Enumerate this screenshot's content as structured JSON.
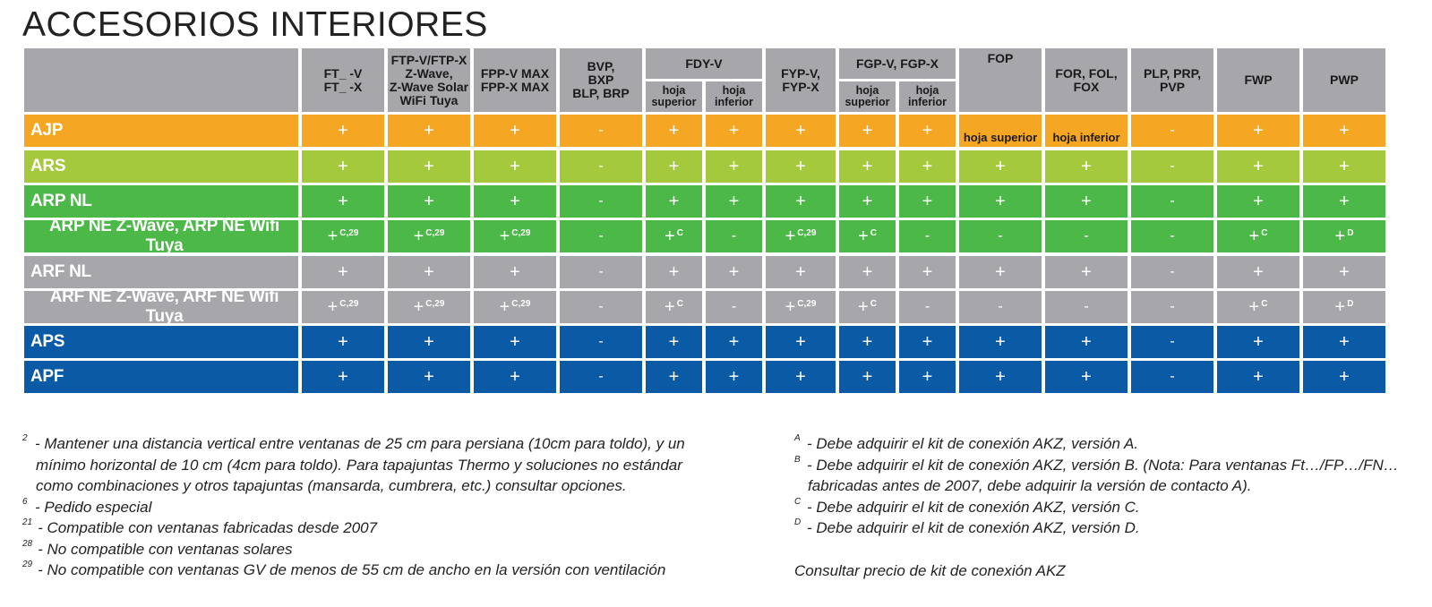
{
  "title": "ACCESORIOS INTERIORES",
  "colors": {
    "orange": "#f5a623",
    "lime": "#a5c93c",
    "green": "#4cb848",
    "gray": "#a6a6ab",
    "blue": "#0a5aa5"
  },
  "header": {
    "columns": [
      {
        "label": "FT_ -V\nFT_ -X"
      },
      {
        "label": "FTP-V/FTP-X\nZ-Wave,\nZ-Wave Solar\nWiFi Tuya"
      },
      {
        "label": "FPP-V MAX\nFPP-X MAX"
      },
      {
        "label": "BVP,\nBXP\nBLP, BRP"
      },
      {
        "label": "FDY-V",
        "sub": [
          "hoja\nsuperior",
          "hoja\ninferior"
        ]
      },
      {
        "label": "FYP-V,\nFYP-X"
      },
      {
        "label": "FGP-V, FGP-X",
        "sub": [
          "hoja\nsuperior",
          "hoja\ninferior"
        ]
      },
      {
        "label": "FOP"
      },
      {
        "label": "FOR, FOL,\nFOX"
      },
      {
        "label": "PLP, PRP,\nPVP"
      },
      {
        "label": "FWP"
      },
      {
        "label": "PWP"
      }
    ]
  },
  "rows": [
    {
      "label": "AJP",
      "color": "orange",
      "cells": [
        "+",
        "+",
        "+",
        "-",
        "+",
        "+",
        "+",
        "+",
        "+",
        "hoja superior",
        "hoja inferior",
        "-",
        "+",
        "+"
      ]
    },
    {
      "label": "ARS",
      "color": "lime",
      "cells": [
        "+",
        "+",
        "+",
        "-",
        "+",
        "+",
        "+",
        "+",
        "+",
        "+",
        "+",
        "-",
        "+",
        "+"
      ]
    },
    {
      "label": "ARP NL",
      "color": "green",
      "cells": [
        "+",
        "+",
        "+",
        "-",
        "+",
        "+",
        "+",
        "+",
        "+",
        "+",
        "+",
        "-",
        "+",
        "+"
      ]
    },
    {
      "label": "ARP NE Z-Wave, ARP NE Wifi Tuya",
      "color": "green",
      "cells": [
        "+|C,29",
        "+|C,29",
        "+|C,29",
        "-",
        "+|C",
        "-",
        "+|C,29",
        "+|C",
        "-",
        "-",
        "-",
        "-",
        "+|C",
        "+|D"
      ]
    },
    {
      "label": "ARF NL",
      "color": "gray",
      "cells": [
        "+",
        "+",
        "+",
        "-",
        "+",
        "+",
        "+",
        "+",
        "+",
        "+",
        "+",
        "-",
        "+",
        "+"
      ]
    },
    {
      "label": "ARF NE Z-Wave, ARF NE Wifi Tuya",
      "color": "gray",
      "cells": [
        "+|C,29",
        "+|C,29",
        "+|C,29",
        "-",
        "+|C",
        "-",
        "+|C,29",
        "+|C",
        "-",
        "-",
        "-",
        "-",
        "+|C",
        "+|D"
      ]
    },
    {
      "label": "APS",
      "color": "blue",
      "cells": [
        "+",
        "+",
        "+",
        "-",
        "+",
        "+",
        "+",
        "+",
        "+",
        "+",
        "+",
        "-",
        "+",
        "+"
      ]
    },
    {
      "label": "APF",
      "color": "blue",
      "cells": [
        "+",
        "+",
        "+",
        "-",
        "+",
        "+",
        "+",
        "+",
        "+",
        "+",
        "+",
        "-",
        "+",
        "+"
      ]
    }
  ],
  "footnotes_left": [
    {
      "mark": "2",
      "lines": [
        "- Mantener una distancia vertical entre ventanas de 25 cm para persiana (10cm para toldo), y un",
        "mínimo horizontal de 10 cm (4cm para toldo). Para tapajuntas Thermo y soluciones no estándar",
        "como combinaciones y otros tapajuntas (mansarda, cumbrera, etc.) consultar opciones."
      ]
    },
    {
      "mark": "6",
      "lines": [
        "- Pedido especial"
      ]
    },
    {
      "mark": "21",
      "lines": [
        "- Compatible con ventanas fabricadas desde 2007"
      ]
    },
    {
      "mark": "28",
      "lines": [
        "- No compatible con ventanas solares"
      ]
    },
    {
      "mark": "29",
      "lines": [
        "- No compatible con ventanas GV de menos de 55 cm de ancho en la versión con ventilación"
      ]
    }
  ],
  "footnotes_right": [
    {
      "mark": "A",
      "lines": [
        "- Debe adquirir el kit de conexión AKZ, versión A."
      ]
    },
    {
      "mark": "B",
      "lines": [
        "- Debe adquirir el kit de conexión AKZ, versión B. (Nota: Para ventanas Ft…/FP…/FN…",
        "fabricadas antes de 2007, debe adquirir la versión de contacto A)."
      ]
    },
    {
      "mark": "C",
      "lines": [
        "- Debe adquirir el kit de conexión AKZ, versión C."
      ]
    },
    {
      "mark": "D",
      "lines": [
        "- Debe adquirir el kit de conexión AKZ, versión D."
      ]
    }
  ],
  "akz_note": "Consultar precio de kit de conexión AKZ"
}
